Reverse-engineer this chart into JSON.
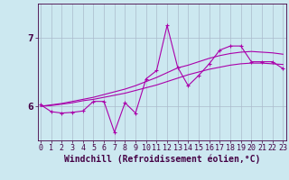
{
  "title": "",
  "xlabel": "Windchill (Refroidissement éolien,°C)",
  "ylabel": "",
  "background_color": "#cce8f0",
  "line_color": "#aa00aa",
  "grid_color": "#aabbcc",
  "axis_color": "#440044",
  "text_color": "#440044",
  "x_ticks": [
    0,
    1,
    2,
    3,
    4,
    5,
    6,
    7,
    8,
    9,
    10,
    11,
    12,
    13,
    14,
    15,
    16,
    17,
    18,
    19,
    20,
    21,
    22,
    23
  ],
  "y_ticks": [
    6,
    7
  ],
  "ylim": [
    5.5,
    7.5
  ],
  "xlim": [
    -0.3,
    23.3
  ],
  "x_data": [
    0,
    1,
    2,
    3,
    4,
    5,
    6,
    7,
    8,
    9,
    10,
    11,
    12,
    13,
    14,
    15,
    16,
    17,
    18,
    19,
    20,
    21,
    22,
    23
  ],
  "y_data_line": [
    6.02,
    5.92,
    5.9,
    5.91,
    5.93,
    6.07,
    6.07,
    5.62,
    6.05,
    5.9,
    6.4,
    6.52,
    7.18,
    6.57,
    6.3,
    6.45,
    6.62,
    6.82,
    6.88,
    6.88,
    6.65,
    6.65,
    6.65,
    6.55
  ],
  "y_data_smooth1": [
    6.0,
    6.02,
    6.04,
    6.07,
    6.1,
    6.13,
    6.17,
    6.21,
    6.25,
    6.3,
    6.36,
    6.42,
    6.49,
    6.56,
    6.6,
    6.65,
    6.7,
    6.74,
    6.77,
    6.79,
    6.8,
    6.79,
    6.78,
    6.76
  ],
  "y_data_smooth2": [
    6.0,
    6.01,
    6.03,
    6.05,
    6.08,
    6.1,
    6.13,
    6.16,
    6.19,
    6.23,
    6.27,
    6.31,
    6.36,
    6.41,
    6.46,
    6.5,
    6.54,
    6.57,
    6.6,
    6.62,
    6.63,
    6.63,
    6.62,
    6.61
  ],
  "font_size_tick": 6,
  "font_size_label": 7
}
